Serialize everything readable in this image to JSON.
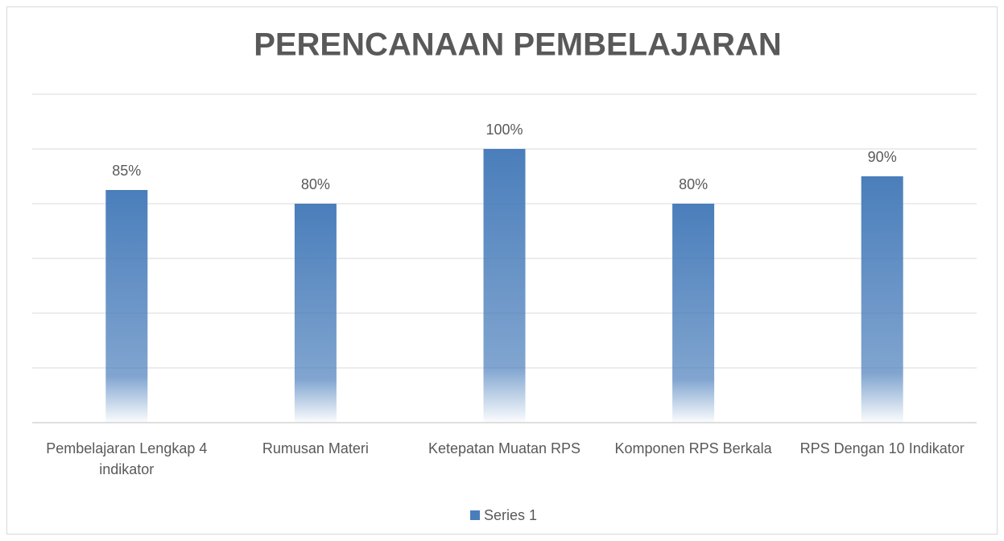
{
  "chart_data": {
    "type": "bar",
    "title": "PERENCANAAN PEMBELAJARAN",
    "categories": [
      "Pembelajaran Lengkap 4 indikator",
      "Rumusan Materi",
      "Ketepatan Muatan RPS",
      "Komponen RPS Berkala",
      "RPS Dengan 10 Indikator"
    ],
    "series": [
      {
        "name": "Series 1",
        "color": "#4a7ebb",
        "values": [
          85,
          80,
          100,
          80,
          90
        ],
        "value_labels": [
          "85%",
          "80%",
          "100%",
          "80%",
          "90%"
        ]
      }
    ],
    "ylim": [
      0,
      120
    ],
    "yticks": [
      0,
      20,
      40,
      60,
      80,
      100,
      120
    ],
    "grid": true,
    "legend": "bottom"
  }
}
